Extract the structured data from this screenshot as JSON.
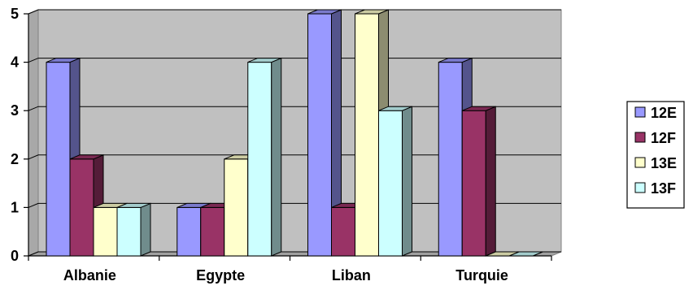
{
  "chart_data": {
    "type": "bar",
    "title": "",
    "xlabel": "",
    "ylabel": "",
    "categories": [
      "Albanie",
      "Egypte",
      "Liban",
      "Turquie"
    ],
    "series": [
      {
        "name": "12E",
        "values": [
          4,
          1,
          5,
          4
        ],
        "color": "#9999ff"
      },
      {
        "name": "12F",
        "values": [
          2,
          1,
          1,
          3
        ],
        "color": "#993366"
      },
      {
        "name": "13E",
        "values": [
          1,
          2,
          5,
          0
        ],
        "color": "#ffffcc"
      },
      {
        "name": "13F",
        "values": [
          1,
          4,
          3,
          0
        ],
        "color": "#ccffff"
      }
    ],
    "ylim": [
      0,
      5
    ],
    "yticks": [
      0,
      1,
      2,
      3,
      4,
      5
    ],
    "grid": true,
    "plot_background": "#c0c0c0",
    "legend_position": "right",
    "style": "3d-clustered-column"
  }
}
